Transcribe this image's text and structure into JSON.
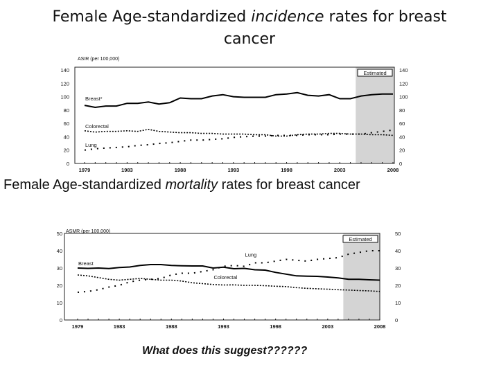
{
  "slide": {
    "title_part1": "Female Age-standardized ",
    "title_emph": "incidence",
    "title_part2": " rates for breast",
    "title_line2": "cancer",
    "subtitle_part1": "Female Age-standardized ",
    "subtitle_emph": "mortality",
    "subtitle_part2": " rates for breast cancer",
    "question": "What does this suggest??????"
  },
  "chart_data": [
    {
      "type": "line",
      "ylabel": "ASIR (per 100,000)",
      "x": [
        1979,
        1980,
        1981,
        1982,
        1983,
        1984,
        1985,
        1986,
        1987,
        1988,
        1989,
        1990,
        1991,
        1992,
        1993,
        1994,
        1995,
        1996,
        1997,
        1998,
        1999,
        2000,
        2001,
        2002,
        2003,
        2004,
        2005,
        2006,
        2007,
        2008
      ],
      "xticks": [
        "1979",
        "1983",
        "1988",
        "1993",
        "1998",
        "2003",
        "2008"
      ],
      "ylim": [
        0,
        140
      ],
      "yticks": [
        0,
        20,
        40,
        60,
        80,
        100,
        120,
        140
      ],
      "grid": false,
      "estimated_from": 2005,
      "estimated_label": "Estimated",
      "colors": {
        "line": "#000000",
        "shade": "#d4d4d4"
      },
      "series": [
        {
          "name": "Breast*",
          "style": "solid",
          "values": [
            87,
            84,
            86,
            86,
            90,
            90,
            92,
            89,
            91,
            98,
            97,
            97,
            101,
            103,
            100,
            99,
            99,
            99,
            103,
            104,
            106,
            102,
            101,
            103,
            97,
            97,
            101,
            103,
            104,
            104
          ]
        },
        {
          "name": "Colorectal",
          "style": "dashed",
          "values": [
            49,
            47,
            48,
            48,
            49,
            48,
            51,
            48,
            47,
            46,
            46,
            45,
            45,
            44,
            44,
            44,
            43,
            43,
            41,
            41,
            43,
            44,
            44,
            45,
            45,
            44,
            44,
            43,
            43,
            42
          ]
        },
        {
          "name": "Lung",
          "style": "dotted",
          "values": [
            20,
            22,
            23,
            24,
            25,
            27,
            28,
            30,
            31,
            33,
            35,
            35,
            36,
            37,
            39,
            40,
            41,
            41,
            42,
            42,
            42,
            43,
            43,
            43,
            44,
            44,
            44,
            46,
            48,
            50
          ]
        }
      ]
    },
    {
      "type": "line",
      "ylabel": "ASMR (per 100,000)",
      "x": [
        1979,
        1980,
        1981,
        1982,
        1983,
        1984,
        1985,
        1986,
        1987,
        1988,
        1989,
        1990,
        1991,
        1992,
        1993,
        1994,
        1995,
        1996,
        1997,
        1998,
        1999,
        2000,
        2001,
        2002,
        2003,
        2004,
        2005,
        2006,
        2007,
        2008
      ],
      "xticks": [
        "1979",
        "1983",
        "1988",
        "1993",
        "1998",
        "2003",
        "2008"
      ],
      "ylim": [
        0,
        50
      ],
      "yticks": [
        0,
        10,
        20,
        30,
        40,
        50
      ],
      "grid": false,
      "estimated_from": 2005,
      "estimated_label": "Estimated",
      "colors": {
        "line": "#000000",
        "shade": "#d4d4d4"
      },
      "series": [
        {
          "name": "Breast",
          "style": "solid",
          "values": [
            30,
            29.8,
            30,
            29.7,
            30.3,
            30.6,
            31.5,
            32,
            32,
            31.5,
            31.3,
            31.2,
            31.2,
            30,
            30.5,
            29.6,
            29.8,
            29,
            28.8,
            27.5,
            26.5,
            25.5,
            25.3,
            25.2,
            24.8,
            24.3,
            23.5,
            23.5,
            23.2,
            23
          ]
        },
        {
          "name": "Colorectal",
          "style": "dashed",
          "values": [
            26,
            25.5,
            24.5,
            23.5,
            23,
            23.5,
            24,
            23.5,
            23,
            23,
            22.5,
            21.5,
            21,
            20.5,
            20.2,
            20.3,
            20,
            20,
            19.8,
            19.5,
            19.3,
            18.7,
            18.3,
            18,
            17.8,
            17.5,
            17.3,
            17,
            16.8,
            16.5
          ]
        },
        {
          "name": "Lung",
          "style": "dotted",
          "values": [
            16,
            16.5,
            17.5,
            19,
            20,
            22,
            23,
            23.5,
            24,
            26,
            27,
            27,
            28,
            29,
            31,
            31.5,
            31,
            33,
            33,
            34,
            35,
            34.5,
            34,
            35,
            35.5,
            36,
            38,
            39,
            40,
            40
          ]
        }
      ]
    }
  ]
}
